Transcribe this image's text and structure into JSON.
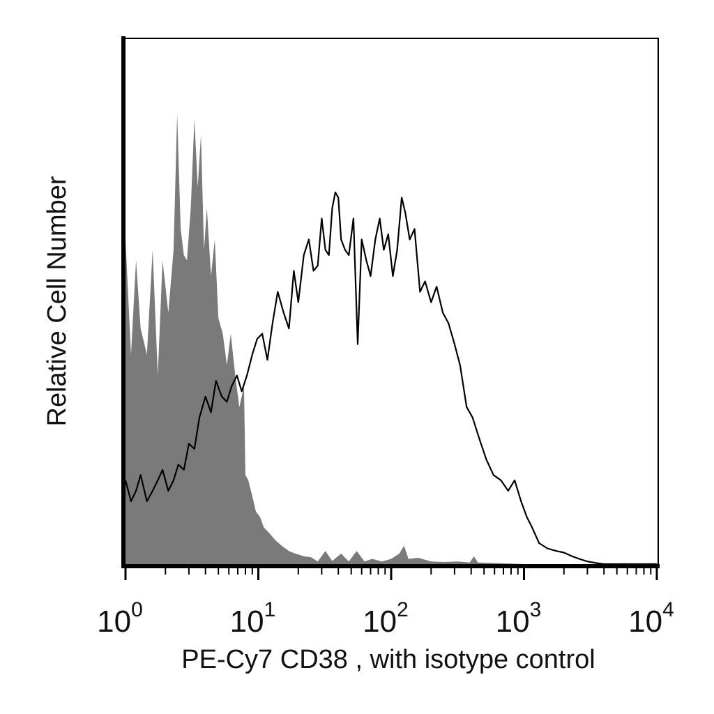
{
  "chart_data": {
    "type": "area",
    "xlabel": "PE-Cy7 CD38 , with isotype control",
    "ylabel": "Relative Cell Number",
    "x_scale": "log",
    "xlim": [
      1,
      10000
    ],
    "ylim": [
      0,
      100
    ],
    "grid": false,
    "legend": "none",
    "x_ticks": [
      {
        "base": "10",
        "exp": "0",
        "value": 1
      },
      {
        "base": "10",
        "exp": "1",
        "value": 10
      },
      {
        "base": "10",
        "exp": "2",
        "value": 100
      },
      {
        "base": "10",
        "exp": "3",
        "value": 1000
      },
      {
        "base": "10",
        "exp": "4",
        "value": 10000
      }
    ],
    "series": [
      {
        "role": "isotype control",
        "style": "filled",
        "color": "#7a7a7a",
        "x": [
          1.0,
          1.1,
          1.2,
          1.3,
          1.45,
          1.6,
          1.75,
          1.9,
          2.1,
          2.3,
          2.45,
          2.6,
          2.75,
          2.9,
          3.1,
          3.3,
          3.5,
          3.7,
          3.9,
          4.1,
          4.4,
          4.7,
          5.0,
          5.4,
          5.8,
          6.2,
          6.7,
          7.2,
          7.8,
          8.0,
          8.4,
          9.0,
          9.6,
          10.3,
          11.0,
          12.0,
          13.5,
          15.0,
          17.0,
          19.0,
          22.0,
          25.0,
          28.0,
          32.0,
          36.0,
          42.0,
          48.0,
          55.0,
          63.0,
          72.0,
          85.0,
          100.0,
          115.0,
          125.0,
          135.0,
          160.0,
          200.0,
          250.0,
          320.0,
          390.0,
          420.0,
          450.0,
          600.0,
          1000.0,
          10000.0
        ],
        "y": [
          62,
          40,
          58,
          45,
          40,
          60,
          36,
          58,
          48,
          60,
          86,
          64,
          59,
          58,
          68,
          85,
          72,
          82,
          60,
          68,
          55,
          62,
          47,
          44,
          38,
          44,
          36,
          30,
          34,
          17,
          16,
          13,
          10,
          9,
          7,
          6,
          4.5,
          3.5,
          2.5,
          2.0,
          1.5,
          1.3,
          0.5,
          2.5,
          0.6,
          2.0,
          0.5,
          2.5,
          0.5,
          1.0,
          0.5,
          1.0,
          2.0,
          3.5,
          1.0,
          1.2,
          0.5,
          0.4,
          0.5,
          0.3,
          1.5,
          0.3,
          0.2,
          0,
          0
        ]
      },
      {
        "role": "PE-Cy7 CD38",
        "style": "line",
        "color": "#000000",
        "x": [
          1.0,
          1.1,
          1.2,
          1.3,
          1.45,
          1.6,
          1.75,
          1.9,
          2.1,
          2.3,
          2.5,
          2.75,
          3.0,
          3.3,
          3.6,
          4.0,
          4.4,
          4.8,
          5.3,
          5.8,
          6.3,
          6.9,
          7.5,
          8.2,
          9.0,
          9.8,
          10.7,
          11.7,
          12.8,
          14.0,
          15.5,
          17.0,
          18.5,
          20.0,
          22.0,
          24.0,
          26.0,
          28.0,
          30.0,
          32.0,
          34.0,
          36.0,
          38.0,
          40.0,
          42.0,
          45.0,
          48.0,
          52.0,
          56.0,
          60.0,
          65.0,
          70.0,
          76.0,
          82.0,
          88.0,
          95.0,
          103.0,
          111.0,
          120.0,
          128.0,
          138.0,
          150.0,
          165.0,
          180.0,
          200.0,
          220.0,
          245.0,
          270.0,
          300.0,
          330.0,
          370.0,
          410.0,
          460.0,
          520.0,
          590.0,
          670.0,
          760.0,
          850.0,
          950.0,
          1050.0,
          1150.0,
          1300.0,
          1500.0,
          1750.0,
          2000.0,
          2300.0,
          2600.0,
          3000.0,
          3500.0,
          4000.0,
          10000.0
        ],
        "y": [
          16,
          12,
          14,
          17,
          12,
          14,
          16,
          18,
          14,
          16,
          19,
          18,
          23,
          22,
          28,
          32,
          29,
          35,
          32,
          31,
          34,
          36,
          33,
          36,
          40,
          43,
          44,
          39,
          46,
          52,
          48,
          45,
          56,
          50,
          59,
          62,
          56,
          57,
          66,
          60,
          59,
          68,
          71,
          70,
          62,
          60,
          59,
          66,
          42,
          62,
          58,
          55,
          62,
          66,
          60,
          63,
          55,
          60,
          70,
          67,
          62,
          64,
          52,
          54,
          50,
          53,
          48,
          46,
          42,
          38,
          30,
          28,
          24,
          20,
          17,
          16,
          14,
          16,
          12,
          9,
          7,
          4,
          3,
          2.5,
          2.2,
          1.5,
          1.0,
          0.5,
          0.2,
          0,
          0
        ]
      }
    ]
  }
}
